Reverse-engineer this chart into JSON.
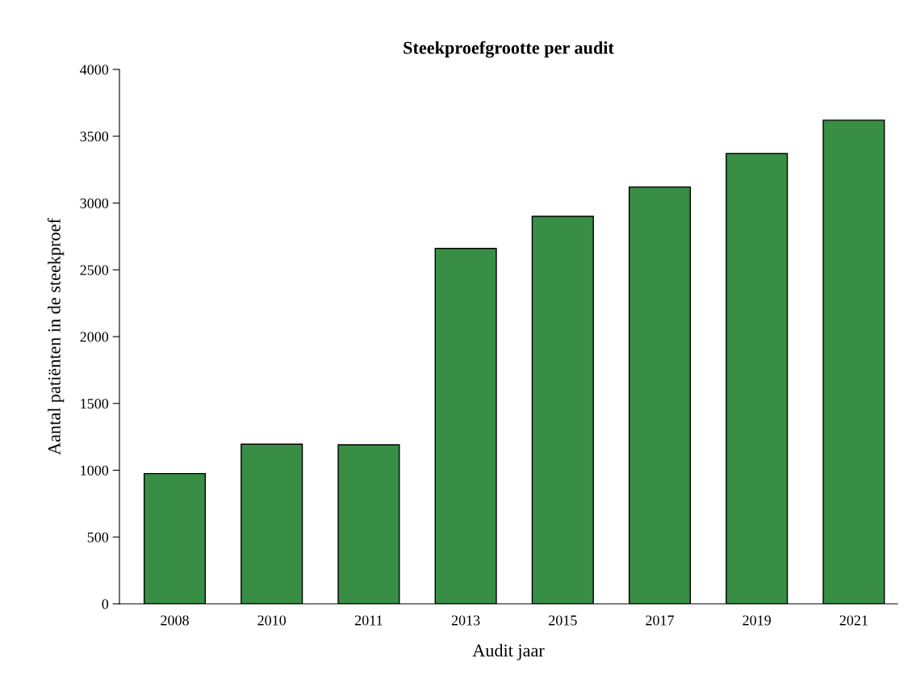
{
  "chart_data": {
    "type": "bar",
    "title": "Steekproefgrootte per audit",
    "xlabel": "Audit jaar",
    "ylabel": "Aantal patiënten in de steekproef",
    "categories": [
      "2008",
      "2010",
      "2011",
      "2013",
      "2015",
      "2017",
      "2019",
      "2021"
    ],
    "values": [
      975,
      1195,
      1190,
      2660,
      2900,
      3120,
      3370,
      3620
    ],
    "color": "#388e44",
    "ylim": [
      0,
      4000
    ],
    "yticks": [
      0,
      500,
      1000,
      1500,
      2000,
      2500,
      3000,
      3500,
      4000
    ],
    "grid": false,
    "legend": false
  }
}
